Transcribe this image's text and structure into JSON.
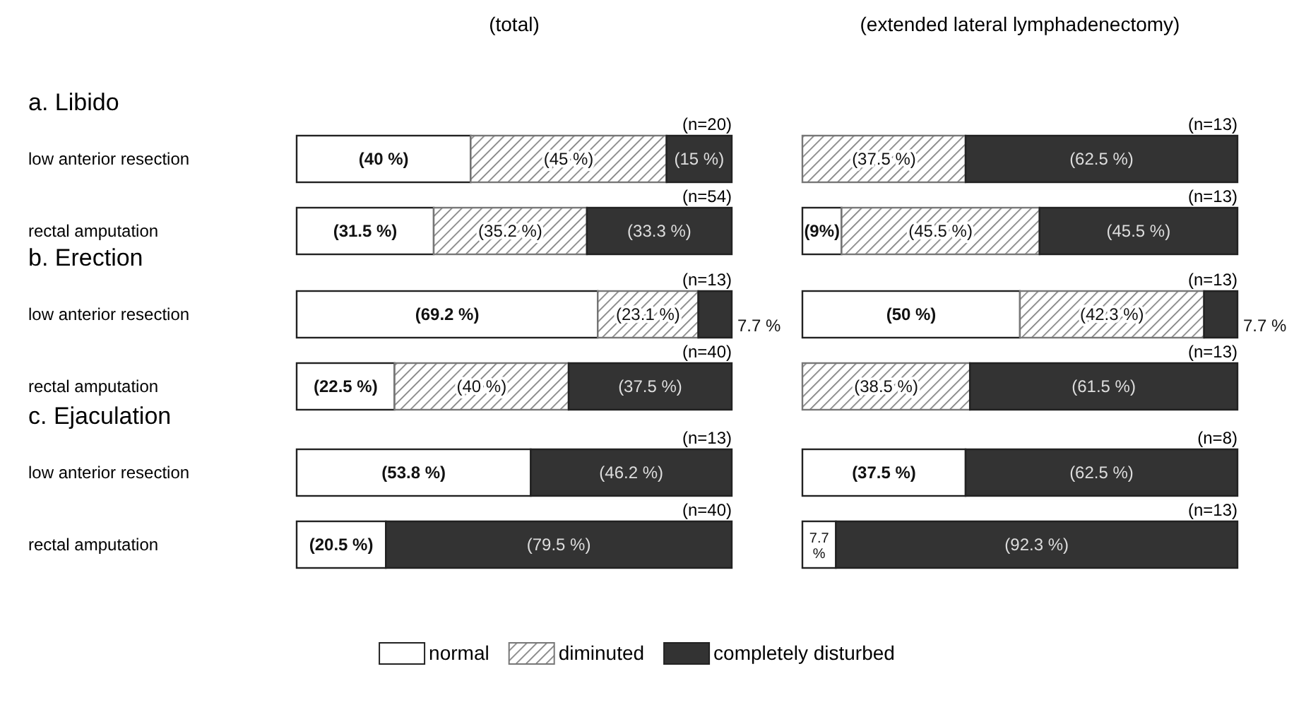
{
  "chart_data": [
    {
      "type": "bar",
      "orientation": "horizontal",
      "stacked": true,
      "title": "a. Libido",
      "subtitle": "(total)",
      "categories": [
        "low anterior resection",
        "rectal amputation"
      ],
      "xlim": [
        0,
        100
      ],
      "tick_labels": "y",
      "annotations": [
        "(n=20)",
        "(n=54)"
      ],
      "series": [
        {
          "color": "#ffffff",
          "values": [
            40,
            31.5
          ],
          "value_labels": [
            "(40 %)",
            "(31.5 %)"
          ]
        },
        {
          "color": "#777777",
          "values": [
            45,
            35.2
          ],
          "value_labels": [
            "(45 %)",
            "(35.2 %)"
          ]
        },
        {
          "color": "#333333",
          "values": [
            15,
            33.3
          ],
          "value_labels": [
            "(15 %)",
            "(33.3 %)"
          ]
        }
      ]
    },
    {
      "type": "bar",
      "orientation": "horizontal",
      "stacked": true,
      "subtitle": "(extended lateral lymphadenectomy)",
      "categories": [
        null,
        null
      ],
      "xlim": [
        0,
        100
      ],
      "tick_labels": false,
      "annotations": [
        "(n=13)",
        "(n=13)"
      ],
      "series": [
        {
          "color": "#ffffff",
          "values": [
            0,
            9
          ],
          "value_labels": [
            null,
            "(9%)"
          ]
        },
        {
          "color": "#777777",
          "values": [
            37.5,
            45.5
          ],
          "value_labels": [
            "(37.5 %)",
            "(45.5 %)"
          ]
        },
        {
          "color": "#333333",
          "values": [
            62.5,
            45.5
          ],
          "value_labels": [
            "(62.5 %)",
            "(45.5 %)"
          ]
        }
      ]
    },
    {
      "type": "bar",
      "orientation": "horizontal",
      "stacked": true,
      "title": "b. Erection",
      "categories": [
        "low anterior resection",
        "rectal amputation"
      ],
      "xlim": [
        0,
        100
      ],
      "tick_labels": "y",
      "annotations": [
        "(n=13)",
        "(n=40)"
      ],
      "series": [
        {
          "color": "#ffffff",
          "values": [
            69.2,
            22.5
          ],
          "value_labels": [
            "(69.2 %)",
            "(22.5 %)"
          ]
        },
        {
          "color": "#777777",
          "values": [
            23.1,
            40
          ],
          "value_labels": [
            "(23.1 %)",
            "(40 %)"
          ]
        },
        {
          "color": "#333333",
          "values": [
            7.7,
            37.5
          ],
          "value_labels": [
            "7.7 %",
            "(37.5 %)"
          ]
        }
      ]
    },
    {
      "type": "bar",
      "orientation": "horizontal",
      "stacked": true,
      "categories": [
        null,
        null
      ],
      "xlim": [
        0,
        100
      ],
      "tick_labels": false,
      "annotations": [
        "(n=13)",
        "(n=13)"
      ],
      "series": [
        {
          "color": "#ffffff",
          "values": [
            50,
            0
          ],
          "value_labels": [
            "(50 %)",
            null
          ]
        },
        {
          "color": "#777777",
          "values": [
            42.3,
            38.5
          ],
          "value_labels": [
            "(42.3 %)",
            "(38.5 %)"
          ]
        },
        {
          "color": "#333333",
          "values": [
            7.7,
            61.5
          ],
          "value_labels": [
            "7.7 %",
            "(61.5 %)"
          ]
        }
      ]
    },
    {
      "type": "bar",
      "orientation": "horizontal",
      "stacked": true,
      "title": "c. Ejaculation",
      "categories": [
        "low anterior resection",
        "rectal amputation"
      ],
      "xlim": [
        0,
        100
      ],
      "tick_labels": "y",
      "legend": "bottom",
      "annotations": [
        "(n=13)",
        "(n=40)"
      ],
      "series": [
        {
          "name": "normal",
          "color": "#ffffff",
          "values": [
            53.8,
            20.5
          ],
          "value_labels": [
            "(53.8 %)",
            "(20.5 %)"
          ]
        },
        {
          "name": "diminuted",
          "color": "#777777",
          "values": [
            0,
            0
          ],
          "value_labels": [
            null,
            null
          ]
        },
        {
          "name": "completely disturbed",
          "color": "#333333",
          "values": [
            46.2,
            79.5
          ],
          "value_labels": [
            "(46.2 %)",
            "(79.5 %)"
          ]
        }
      ]
    },
    {
      "type": "bar",
      "orientation": "horizontal",
      "stacked": true,
      "categories": [
        null,
        null
      ],
      "xlim": [
        0,
        100
      ],
      "tick_labels": false,
      "annotations": [
        "(n=8)",
        "(n=13)"
      ],
      "series": [
        {
          "color": "#ffffff",
          "values": [
            37.5,
            7.7
          ],
          "value_labels": [
            "(37.5 %)",
            "7.7 %"
          ]
        },
        {
          "color": "#777777",
          "values": [
            0,
            0
          ],
          "value_labels": [
            null,
            null
          ]
        },
        {
          "color": "#333333",
          "values": [
            62.5,
            92.3
          ],
          "value_labels": [
            "(62.5 %)",
            "(92.3 %)"
          ]
        }
      ]
    }
  ]
}
